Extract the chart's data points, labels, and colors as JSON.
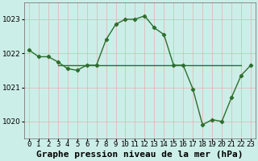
{
  "title": "Graphe pression niveau de la mer (hPa)",
  "x_labels": [
    "0",
    "1",
    "2",
    "3",
    "4",
    "5",
    "6",
    "7",
    "8",
    "9",
    "10",
    "11",
    "12",
    "13",
    "14",
    "15",
    "16",
    "17",
    "18",
    "19",
    "20",
    "21",
    "22",
    "23"
  ],
  "ylim": [
    1019.5,
    1023.5
  ],
  "yticks": [
    1020,
    1021,
    1022,
    1023
  ],
  "xlim": [
    -0.5,
    23.5
  ],
  "background_color": "#cceee8",
  "grid_color_v": "#e8b0b0",
  "grid_color_h": "#e8b0b0",
  "line_color": "#2d6e2d",
  "series1": [
    1022.1,
    1021.9,
    1021.9,
    1021.75,
    1021.55,
    1021.5,
    1021.65,
    1021.65,
    1022.4,
    1022.85,
    1023.0,
    1023.0,
    1023.1,
    1022.75,
    1022.55,
    1021.65,
    1021.65,
    1020.95,
    1019.9,
    1020.05,
    1020.0,
    1020.7,
    1021.35,
    1021.65
  ],
  "flat_line": [
    [
      3,
      1021.65
    ],
    [
      4,
      1021.65
    ],
    [
      5,
      1021.65
    ],
    [
      6,
      1021.65
    ],
    [
      7,
      1021.65
    ],
    [
      8,
      1021.65
    ],
    [
      9,
      1021.65
    ],
    [
      10,
      1021.65
    ],
    [
      11,
      1021.65
    ],
    [
      12,
      1021.65
    ],
    [
      13,
      1021.65
    ],
    [
      14,
      1021.65
    ],
    [
      15,
      1021.65
    ],
    [
      16,
      1021.65
    ]
  ],
  "flat_line2": [
    [
      16,
      1021.65
    ],
    [
      17,
      1021.65
    ],
    [
      18,
      1021.65
    ],
    [
      19,
      1021.65
    ],
    [
      20,
      1021.65
    ],
    [
      21,
      1021.65
    ],
    [
      22,
      1021.65
    ]
  ],
  "flat_line_value": 1021.65,
  "title_fontsize": 8,
  "tick_fontsize": 6.5
}
